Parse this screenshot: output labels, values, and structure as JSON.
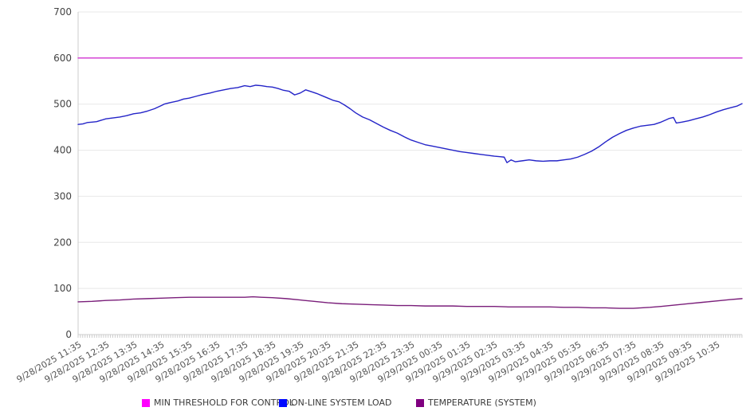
{
  "chart_data": {
    "type": "line",
    "title": "",
    "xlabel": "",
    "ylabel": "",
    "ylim": [
      0,
      700
    ],
    "y_ticks": [
      0,
      100,
      200,
      300,
      400,
      500,
      600,
      700
    ],
    "grid": true,
    "legend_position": "bottom",
    "x_minor_tick_interval_minutes": 5,
    "x_hours_span": 23.92,
    "x_labels": [
      "9/28/2025 11:35",
      "9/28/2025 12:35",
      "9/28/2025 13:35",
      "9/28/2025 14:35",
      "9/28/2025 15:35",
      "9/28/2025 16:35",
      "9/28/2025 17:35",
      "9/28/2025 18:35",
      "9/28/2025 19:35",
      "9/28/2025 20:35",
      "9/28/2025 21:35",
      "9/28/2025 22:35",
      "9/28/2025 23:35",
      "9/29/2025 00:35",
      "9/29/2025 01:35",
      "9/29/2025 02:35",
      "9/29/2025 03:35",
      "9/29/2025 04:35",
      "9/29/2025 05:35",
      "9/29/2025 06:35",
      "9/29/2025 07:35",
      "9/29/2025 08:35",
      "9/29/2025 09:35",
      "9/29/2025 10:35"
    ],
    "series": [
      {
        "name": "MIN THRESHOLD FOR CONTROL",
        "color": "#d233d2",
        "legend_color": "#ff00ff",
        "points": [
          [
            0,
            600
          ],
          [
            23.92,
            600
          ]
        ]
      },
      {
        "name": "ON-LINE SYSTEM LOAD",
        "color": "#2424c8",
        "legend_color": "#0008ff",
        "points": [
          [
            0,
            456
          ],
          [
            0.17,
            457
          ],
          [
            0.33,
            460
          ],
          [
            0.5,
            461
          ],
          [
            0.67,
            462
          ],
          [
            0.83,
            465
          ],
          [
            1,
            468
          ],
          [
            1.25,
            470
          ],
          [
            1.5,
            472
          ],
          [
            1.75,
            475
          ],
          [
            2,
            479
          ],
          [
            2.25,
            481
          ],
          [
            2.5,
            485
          ],
          [
            2.75,
            490
          ],
          [
            3,
            497
          ],
          [
            3.1,
            500
          ],
          [
            3.3,
            503
          ],
          [
            3.6,
            507
          ],
          [
            3.8,
            511
          ],
          [
            4,
            513
          ],
          [
            4.25,
            517
          ],
          [
            4.5,
            521
          ],
          [
            4.75,
            524
          ],
          [
            5,
            528
          ],
          [
            5.25,
            531
          ],
          [
            5.5,
            534
          ],
          [
            5.75,
            536
          ],
          [
            6,
            540
          ],
          [
            6.2,
            538
          ],
          [
            6.4,
            541
          ],
          [
            6.6,
            540
          ],
          [
            6.8,
            538
          ],
          [
            7,
            537
          ],
          [
            7.2,
            534
          ],
          [
            7.4,
            530
          ],
          [
            7.6,
            528
          ],
          [
            7.8,
            520
          ],
          [
            8,
            524
          ],
          [
            8.2,
            531
          ],
          [
            8.4,
            527
          ],
          [
            8.6,
            523
          ],
          [
            8.8,
            518
          ],
          [
            9,
            513
          ],
          [
            9.2,
            508
          ],
          [
            9.4,
            505
          ],
          [
            9.6,
            498
          ],
          [
            9.8,
            490
          ],
          [
            10,
            481
          ],
          [
            10.25,
            472
          ],
          [
            10.5,
            466
          ],
          [
            10.75,
            458
          ],
          [
            11,
            450
          ],
          [
            11.25,
            443
          ],
          [
            11.5,
            437
          ],
          [
            11.75,
            429
          ],
          [
            12,
            422
          ],
          [
            12.25,
            417
          ],
          [
            12.5,
            412
          ],
          [
            12.75,
            409
          ],
          [
            13,
            406
          ],
          [
            13.25,
            403
          ],
          [
            13.5,
            400
          ],
          [
            13.75,
            397
          ],
          [
            14,
            395
          ],
          [
            14.25,
            393
          ],
          [
            14.5,
            391
          ],
          [
            14.75,
            389
          ],
          [
            15,
            387
          ],
          [
            15.2,
            386
          ],
          [
            15.35,
            385
          ],
          [
            15.45,
            373
          ],
          [
            15.6,
            379
          ],
          [
            15.75,
            375
          ],
          [
            16,
            377
          ],
          [
            16.25,
            379
          ],
          [
            16.5,
            377
          ],
          [
            16.75,
            376
          ],
          [
            17,
            377
          ],
          [
            17.25,
            377
          ],
          [
            17.5,
            379
          ],
          [
            17.75,
            381
          ],
          [
            18,
            385
          ],
          [
            18.25,
            391
          ],
          [
            18.5,
            398
          ],
          [
            18.75,
            407
          ],
          [
            19,
            418
          ],
          [
            19.25,
            428
          ],
          [
            19.5,
            436
          ],
          [
            19.75,
            443
          ],
          [
            20,
            448
          ],
          [
            20.25,
            452
          ],
          [
            20.5,
            454
          ],
          [
            20.75,
            456
          ],
          [
            21,
            461
          ],
          [
            21.15,
            465
          ],
          [
            21.3,
            469
          ],
          [
            21.45,
            471
          ],
          [
            21.55,
            459
          ],
          [
            21.75,
            461
          ],
          [
            22,
            464
          ],
          [
            22.25,
            468
          ],
          [
            22.5,
            472
          ],
          [
            22.75,
            477
          ],
          [
            23,
            483
          ],
          [
            23.25,
            488
          ],
          [
            23.5,
            492
          ],
          [
            23.75,
            496
          ],
          [
            23.92,
            501
          ]
        ]
      },
      {
        "name": "TEMPERATURE (SYSTEM)",
        "color": "#7a1e7a",
        "legend_color": "#800080",
        "points": [
          [
            0,
            71
          ],
          [
            0.5,
            72
          ],
          [
            1,
            74
          ],
          [
            1.5,
            75
          ],
          [
            2,
            77
          ],
          [
            2.5,
            78
          ],
          [
            3,
            79
          ],
          [
            3.5,
            80
          ],
          [
            4,
            81
          ],
          [
            4.5,
            81
          ],
          [
            5,
            81
          ],
          [
            5.5,
            81
          ],
          [
            6,
            81
          ],
          [
            6.3,
            82
          ],
          [
            6.6,
            81
          ],
          [
            7,
            80
          ],
          [
            7.5,
            78
          ],
          [
            8,
            75
          ],
          [
            8.5,
            72
          ],
          [
            9,
            69
          ],
          [
            9.5,
            67
          ],
          [
            10,
            66
          ],
          [
            10.5,
            65
          ],
          [
            11,
            64
          ],
          [
            11.5,
            63
          ],
          [
            12,
            63
          ],
          [
            12.5,
            62
          ],
          [
            13,
            62
          ],
          [
            13.5,
            62
          ],
          [
            14,
            61
          ],
          [
            14.5,
            61
          ],
          [
            15,
            61
          ],
          [
            15.5,
            60
          ],
          [
            16,
            60
          ],
          [
            16.5,
            60
          ],
          [
            17,
            60
          ],
          [
            17.5,
            59
          ],
          [
            18,
            59
          ],
          [
            18.5,
            58
          ],
          [
            19,
            58
          ],
          [
            19.5,
            57
          ],
          [
            20,
            57
          ],
          [
            20.3,
            58
          ],
          [
            20.6,
            59
          ],
          [
            21,
            61
          ],
          [
            21.5,
            64
          ],
          [
            22,
            67
          ],
          [
            22.5,
            70
          ],
          [
            23,
            73
          ],
          [
            23.5,
            76
          ],
          [
            23.92,
            78
          ]
        ]
      }
    ]
  },
  "legend": {
    "items": [
      {
        "label": "MIN THRESHOLD FOR CONTROL",
        "color": "#ff00ff"
      },
      {
        "label": "ON-LINE SYSTEM LOAD",
        "color": "#0008ff"
      },
      {
        "label": "TEMPERATURE (SYSTEM)",
        "color": "#800080"
      }
    ]
  },
  "style": {
    "grid_color": "#e8e8e8",
    "axis_color": "#cccccc",
    "tick_label_color": "#555555"
  }
}
